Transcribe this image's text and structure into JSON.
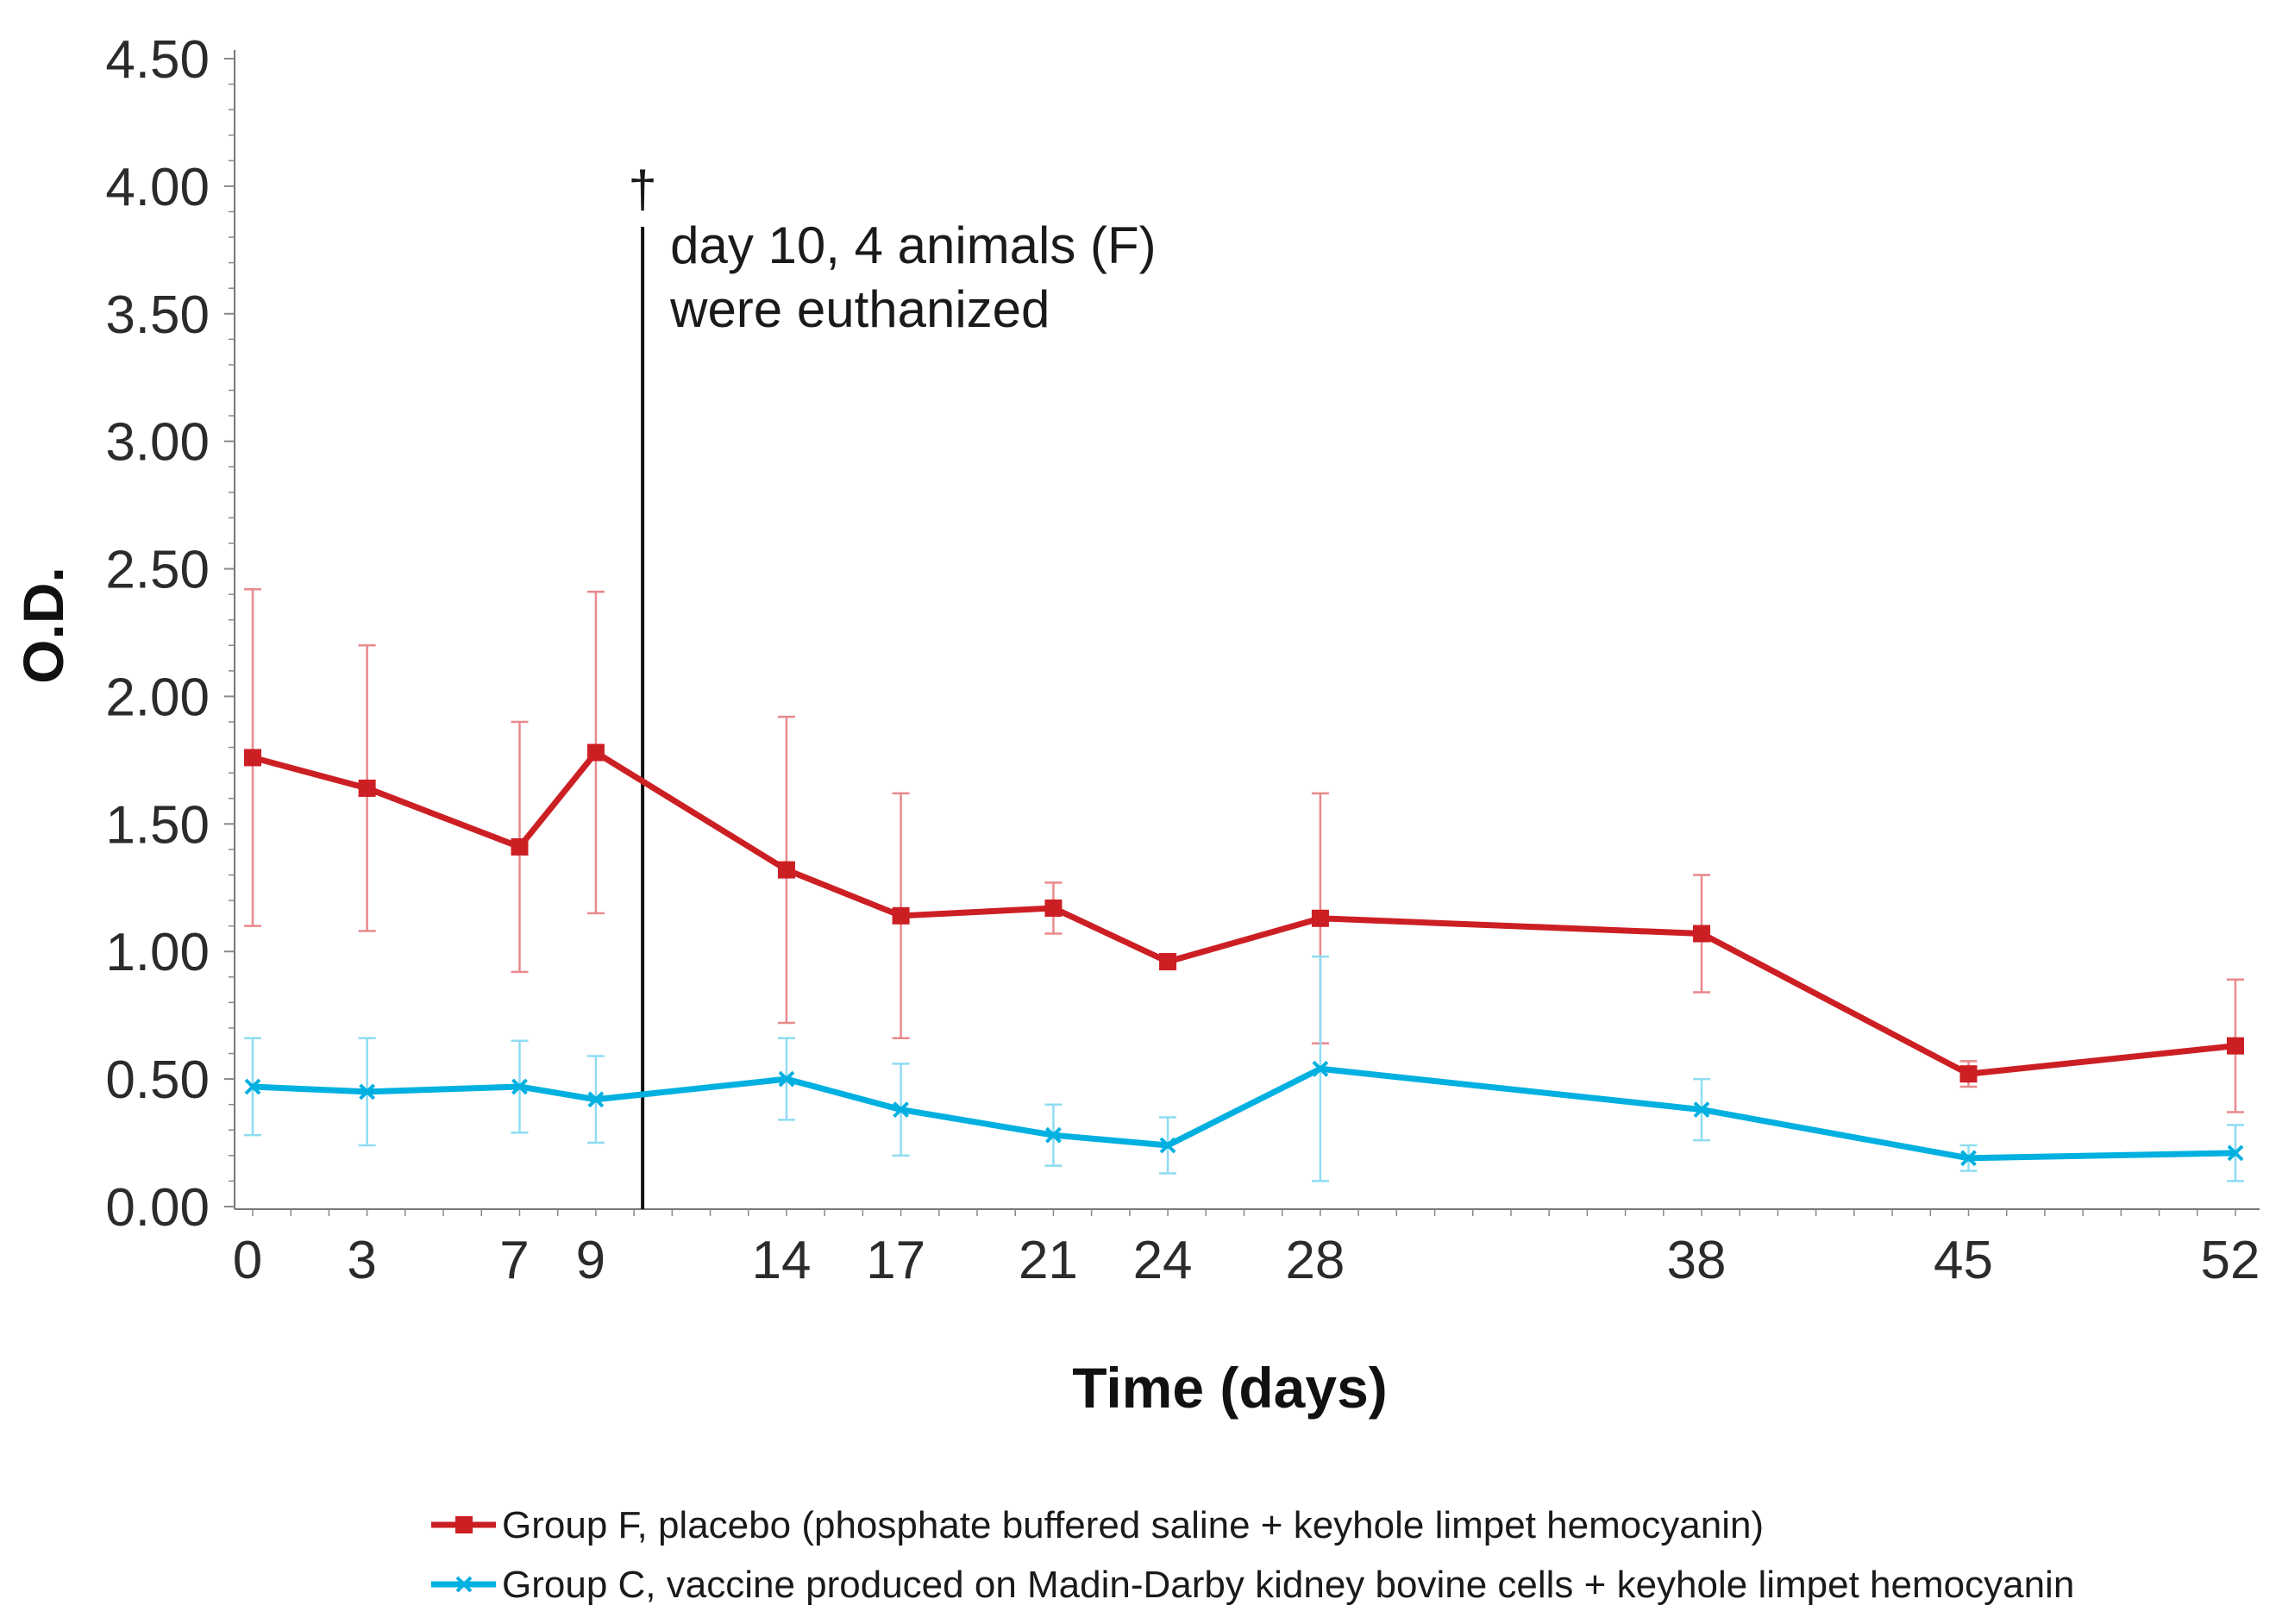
{
  "chart_data": {
    "type": "line",
    "xlabel": "Time (days)",
    "ylabel": "O.D.",
    "ylim": [
      0,
      4.5
    ],
    "xlim": [
      0,
      52
    ],
    "y_ticks": [
      "0.00",
      "0.50",
      "1.00",
      "1.50",
      "2.00",
      "2.50",
      "3.00",
      "3.50",
      "4.00",
      "4.50"
    ],
    "x_ticks": [
      0,
      3,
      7,
      9,
      14,
      17,
      21,
      24,
      28,
      38,
      45,
      52
    ],
    "x": [
      0,
      3,
      7,
      9,
      14,
      17,
      21,
      24,
      28,
      38,
      45,
      52
    ],
    "series": [
      {
        "name": "Group F, placebo (phosphate buffered saline + keyhole limpet hemocyanin)",
        "color": "#cc1f24",
        "marker": "square",
        "values": [
          1.76,
          1.64,
          1.41,
          1.78,
          1.32,
          1.14,
          1.17,
          0.96,
          1.13,
          1.07,
          0.52,
          0.63
        ],
        "errors": [
          0.66,
          0.56,
          0.49,
          0.63,
          0.6,
          0.48,
          0.1,
          0.03,
          0.49,
          0.23,
          0.05,
          0.26
        ]
      },
      {
        "name": "Group C, vaccine produced on Madin-Darby kidney bovine cells + keyhole limpet hemocyanin",
        "color": "#00b0e0",
        "marker": "x",
        "values": [
          0.47,
          0.45,
          0.47,
          0.42,
          0.5,
          0.38,
          0.28,
          0.24,
          0.54,
          0.38,
          0.19,
          0.21
        ],
        "errors": [
          0.19,
          0.21,
          0.18,
          0.17,
          0.16,
          0.18,
          0.12,
          0.11,
          0.44,
          0.12,
          0.05,
          0.11
        ]
      }
    ],
    "annotations": [
      {
        "x": 10,
        "symbol": "†",
        "lines": [
          "day 10, 4 animals (F)",
          "were euthanized"
        ]
      }
    ],
    "legend_position": "bottom"
  }
}
